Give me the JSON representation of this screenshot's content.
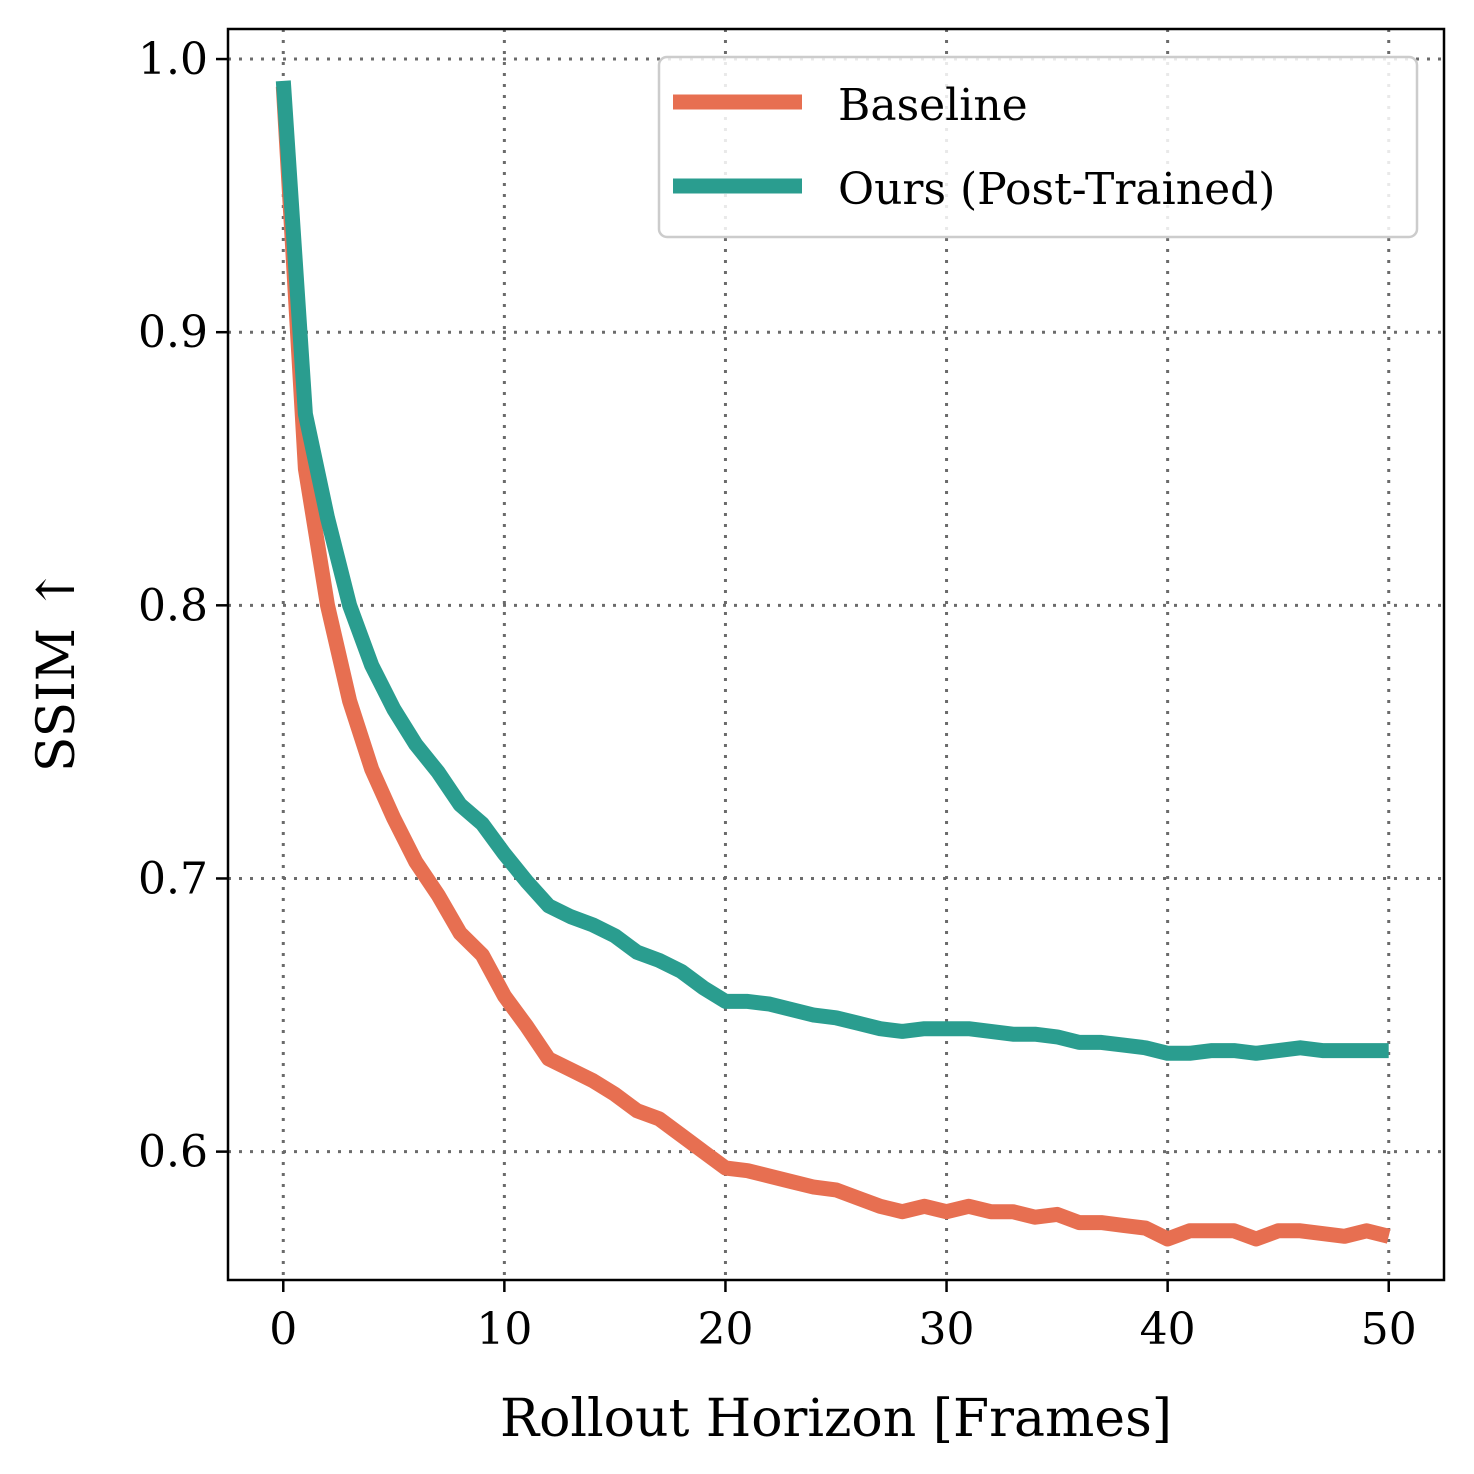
{
  "chart_data": {
    "type": "line",
    "title": "",
    "xlabel": "Rollout Horizon [Frames]",
    "ylabel": "SSIM ↑",
    "xlim": [
      -2.5,
      52.5
    ],
    "ylim": [
      0.553,
      1.011
    ],
    "xticks": [
      0,
      10,
      20,
      30,
      40,
      50
    ],
    "xtick_labels": [
      "0",
      "10",
      "20",
      "30",
      "40",
      "50"
    ],
    "yticks": [
      0.6,
      0.7,
      0.8,
      0.9,
      1.0
    ],
    "ytick_labels": [
      "0.6",
      "0.7",
      "0.8",
      "0.9",
      "1.0"
    ],
    "grid": true,
    "legend_position": "top-right",
    "x": [
      0,
      1,
      2,
      3,
      4,
      5,
      6,
      7,
      8,
      9,
      10,
      11,
      12,
      13,
      14,
      15,
      16,
      17,
      18,
      19,
      20,
      21,
      22,
      23,
      24,
      25,
      26,
      27,
      28,
      29,
      30,
      31,
      32,
      33,
      34,
      35,
      36,
      37,
      38,
      39,
      40,
      41,
      42,
      43,
      44,
      45,
      46,
      47,
      48,
      49,
      50
    ],
    "series": [
      {
        "name": "Baseline",
        "color": "#E76F51",
        "values": [
          0.99,
          0.85,
          0.8,
          0.765,
          0.74,
          0.722,
          0.706,
          0.694,
          0.68,
          0.672,
          0.657,
          0.646,
          0.634,
          0.63,
          0.626,
          0.621,
          0.615,
          0.612,
          0.606,
          0.6,
          0.594,
          0.593,
          0.591,
          0.589,
          0.587,
          0.586,
          0.583,
          0.58,
          0.578,
          0.58,
          0.578,
          0.58,
          0.578,
          0.578,
          0.576,
          0.577,
          0.574,
          0.574,
          0.573,
          0.572,
          0.568,
          0.571,
          0.571,
          0.571,
          0.568,
          0.571,
          0.571,
          0.57,
          0.569,
          0.571,
          0.569
        ]
      },
      {
        "name": "Ours (Post-Trained)",
        "color": "#2A9D8F",
        "values": [
          0.992,
          0.87,
          0.832,
          0.8,
          0.778,
          0.762,
          0.749,
          0.739,
          0.727,
          0.72,
          0.709,
          0.699,
          0.69,
          0.686,
          0.683,
          0.679,
          0.673,
          0.67,
          0.666,
          0.66,
          0.655,
          0.655,
          0.654,
          0.652,
          0.65,
          0.649,
          0.647,
          0.645,
          0.644,
          0.645,
          0.645,
          0.645,
          0.644,
          0.643,
          0.643,
          0.642,
          0.64,
          0.64,
          0.639,
          0.638,
          0.636,
          0.636,
          0.637,
          0.637,
          0.636,
          0.637,
          0.638,
          0.637,
          0.637,
          0.637,
          0.637
        ]
      }
    ]
  }
}
